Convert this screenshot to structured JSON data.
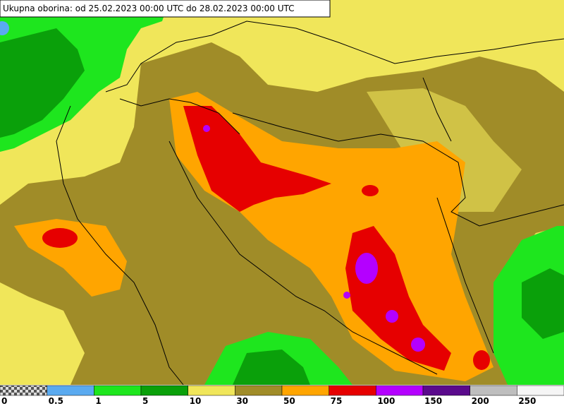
{
  "title": "Ukupna oborina: od 25.02.2023 00:00 UTC do 28.02.2023 00:00 UTC",
  "legend": {
    "labels": [
      "0",
      "0.5",
      "1",
      "5",
      "10",
      "30",
      "50",
      "75",
      "100",
      "150",
      "200",
      "250"
    ],
    "colors": [
      "checker",
      "#5aaaf0",
      "#1ee61e",
      "#0aa00a",
      "#f0e65a",
      "#a08c28",
      "#ffa500",
      "#e60000",
      "#b400ff",
      "#5a0a8c",
      "#bebebe",
      "#f5f5f5"
    ]
  }
}
